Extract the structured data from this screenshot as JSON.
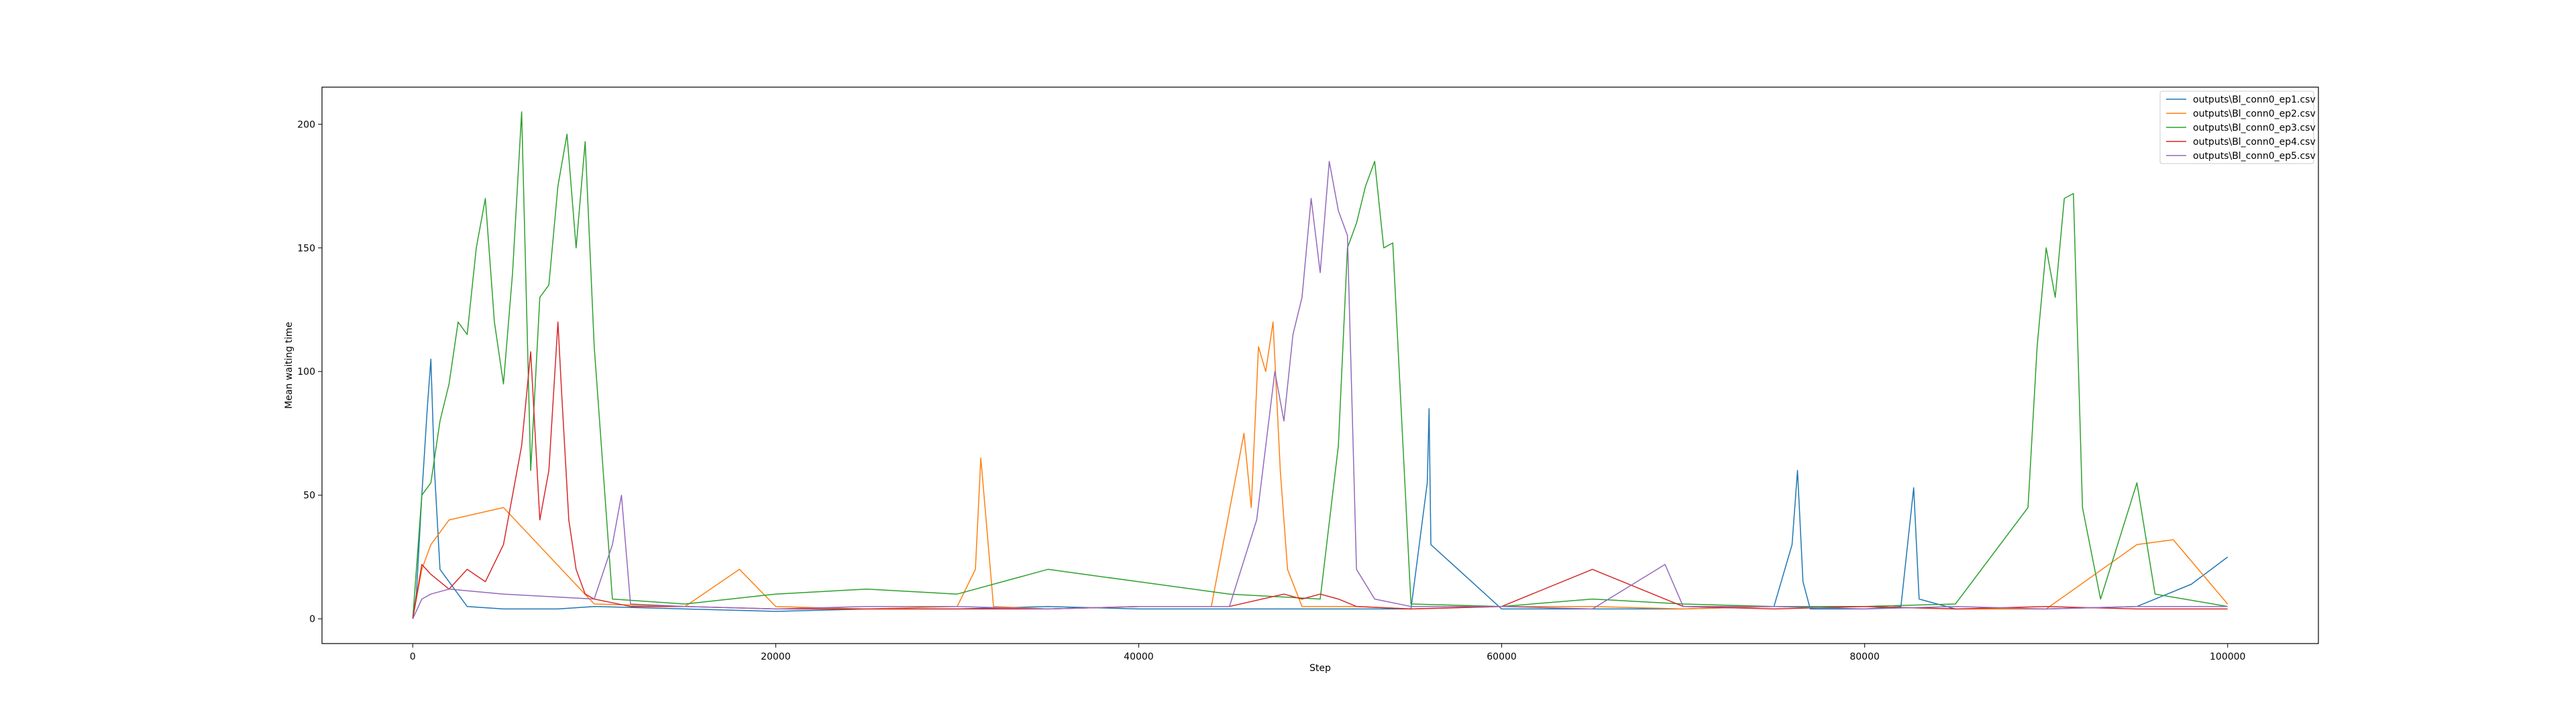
{
  "chart_data": {
    "type": "line",
    "title": "",
    "xlabel": "Step",
    "ylabel": "Mean waiting time",
    "xlim": [
      -5000,
      105000
    ],
    "ylim": [
      -10,
      215
    ],
    "x_ticks": [
      0,
      20000,
      40000,
      60000,
      80000,
      100000
    ],
    "y_ticks": [
      0,
      50,
      100,
      150,
      200
    ],
    "grid": false,
    "legend_position": "top-right",
    "series": [
      {
        "name": "outputs\\Bl_conn0_ep1.csv",
        "color": "#1f77b4",
        "x": [
          0,
          200,
          500,
          800,
          1000,
          1200,
          1500,
          2000,
          3000,
          5000,
          8000,
          10000,
          15000,
          20000,
          25000,
          30000,
          35000,
          40000,
          45000,
          50000,
          55000,
          55900,
          56000,
          56100,
          60000,
          65000,
          70000,
          75000,
          76000,
          76300,
          76600,
          77000,
          80000,
          82000,
          82700,
          83000,
          85000,
          90000,
          95000,
          98000,
          100000
        ],
        "y": [
          0,
          10,
          50,
          85,
          105,
          60,
          20,
          15,
          5,
          4,
          4,
          5,
          4,
          3,
          4,
          4,
          5,
          4,
          4,
          4,
          4,
          55,
          85,
          30,
          4,
          4,
          4,
          5,
          30,
          60,
          15,
          4,
          4,
          5,
          53,
          8,
          4,
          4,
          5,
          14,
          25
        ]
      },
      {
        "name": "outputs\\Bl_conn0_ep2.csv",
        "color": "#ff7f0e",
        "x": [
          0,
          500,
          1000,
          2000,
          5000,
          10000,
          15000,
          18000,
          20000,
          25000,
          30000,
          31000,
          31300,
          32000,
          35000,
          40000,
          44000,
          45800,
          46200,
          46600,
          47000,
          47400,
          47800,
          48200,
          49000,
          52000,
          55000,
          60000,
          65000,
          70000,
          75000,
          80000,
          85000,
          90000,
          95000,
          97000,
          100000
        ],
        "y": [
          0,
          20,
          30,
          40,
          45,
          6,
          5,
          20,
          5,
          4,
          5,
          20,
          65,
          5,
          4,
          5,
          5,
          75,
          45,
          110,
          100,
          120,
          60,
          20,
          5,
          5,
          4,
          5,
          5,
          4,
          5,
          5,
          4,
          4,
          30,
          32,
          6
        ]
      },
      {
        "name": "outputs\\Bl_conn0_ep3.csv",
        "color": "#2ca02c",
        "x": [
          0,
          500,
          1000,
          1500,
          2000,
          2500,
          3000,
          3500,
          4000,
          4500,
          5000,
          5500,
          6000,
          6500,
          7000,
          7500,
          8000,
          8500,
          9000,
          9500,
          10000,
          11000,
          15000,
          20000,
          25000,
          30000,
          35000,
          40000,
          45000,
          50000,
          51000,
          51500,
          52000,
          52500,
          53000,
          53500,
          54000,
          55000,
          60000,
          65000,
          70000,
          75000,
          80000,
          85000,
          89000,
          89500,
          90000,
          90500,
          91000,
          91500,
          92000,
          93000,
          95000,
          96000,
          100000
        ],
        "y": [
          0,
          50,
          55,
          80,
          95,
          120,
          115,
          150,
          170,
          120,
          95,
          140,
          205,
          60,
          130,
          135,
          175,
          196,
          150,
          193,
          110,
          8,
          6,
          10,
          12,
          10,
          20,
          15,
          10,
          8,
          70,
          150,
          160,
          175,
          185,
          150,
          152,
          6,
          5,
          8,
          6,
          5,
          5,
          6,
          45,
          110,
          150,
          130,
          170,
          172,
          45,
          8,
          55,
          10,
          5
        ]
      },
      {
        "name": "outputs\\Bl_conn0_ep4.csv",
        "color": "#d62728",
        "x": [
          0,
          500,
          1000,
          2000,
          3000,
          4000,
          5000,
          6000,
          6500,
          7000,
          7500,
          8000,
          8200,
          8600,
          9000,
          9500,
          10000,
          12000,
          15000,
          20000,
          25000,
          30000,
          35000,
          40000,
          45000,
          48000,
          49000,
          50000,
          51000,
          52000,
          55000,
          60000,
          65000,
          70000,
          75000,
          80000,
          85000,
          90000,
          95000,
          100000
        ],
        "y": [
          0,
          22,
          18,
          12,
          20,
          15,
          30,
          70,
          108,
          40,
          60,
          120,
          92,
          40,
          20,
          10,
          8,
          5,
          5,
          4,
          4,
          4,
          4,
          5,
          5,
          10,
          8,
          10,
          8,
          5,
          4,
          5,
          20,
          5,
          4,
          5,
          4,
          5,
          4,
          4
        ]
      },
      {
        "name": "outputs\\Bl_conn0_ep5.csv",
        "color": "#9467bd",
        "x": [
          0,
          500,
          1000,
          2000,
          5000,
          10000,
          11000,
          11500,
          12000,
          15000,
          20000,
          25000,
          30000,
          35000,
          40000,
          45000,
          46500,
          47500,
          48000,
          48500,
          49000,
          49500,
          50000,
          50500,
          51000,
          51500,
          52000,
          53000,
          55000,
          60000,
          65000,
          69000,
          70000,
          75000,
          80000,
          85000,
          90000,
          95000,
          100000
        ],
        "y": [
          0,
          8,
          10,
          12,
          10,
          8,
          30,
          50,
          6,
          5,
          4,
          5,
          5,
          4,
          5,
          5,
          40,
          100,
          80,
          115,
          130,
          170,
          140,
          185,
          165,
          155,
          20,
          8,
          5,
          5,
          4,
          22,
          5,
          5,
          4,
          5,
          4,
          5,
          5
        ]
      }
    ]
  }
}
